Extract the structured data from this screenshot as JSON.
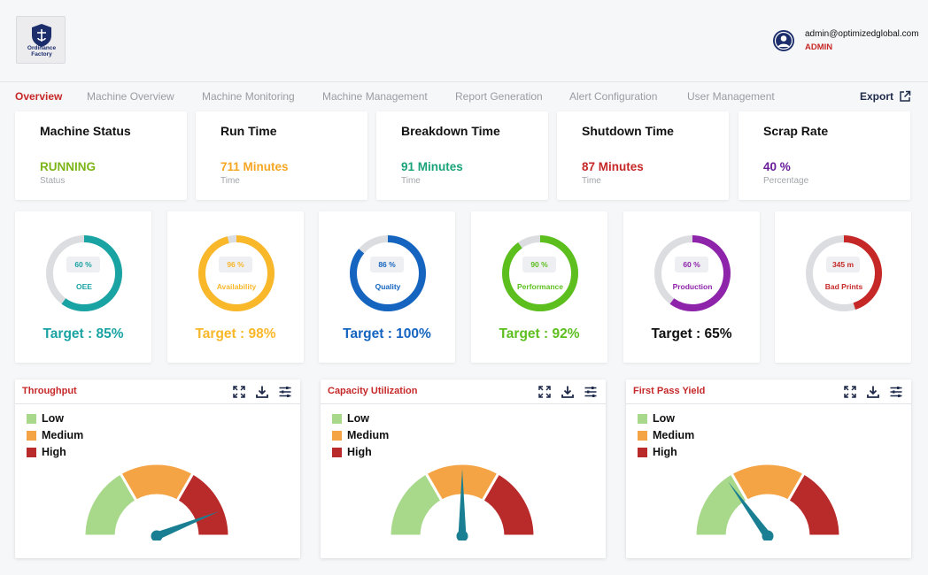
{
  "header": {
    "logo_text": "Ordinance Factory",
    "user_email": "admin@optimizedglobal.com",
    "user_role": "ADMIN"
  },
  "tabs": [
    {
      "label": "Overview",
      "active": true
    },
    {
      "label": "Machine Overview"
    },
    {
      "label": "Machine Monitoring"
    },
    {
      "label": "Machine Management"
    },
    {
      "label": "Report Generation"
    },
    {
      "label": "Alert Configuration"
    },
    {
      "label": "User Management"
    }
  ],
  "export_label": "Export",
  "stats": [
    {
      "title": "Machine Status",
      "value": "RUNNING",
      "sub": "Status",
      "color": "#7cb518"
    },
    {
      "title": "Run Time",
      "value": "711 Minutes",
      "sub": "Time",
      "color": "#f5a623"
    },
    {
      "title": "Breakdown Time",
      "value": "91 Minutes",
      "sub": "Time",
      "color": "#1aa37a"
    },
    {
      "title": "Shutdown Time",
      "value": "87 Minutes",
      "sub": "Time",
      "color": "#c62828"
    },
    {
      "title": "Scrap Rate",
      "value": "40 %",
      "sub": "Percentage",
      "color": "#6a1b9a"
    }
  ],
  "kpis": [
    {
      "value": "60 %",
      "label": "OEE",
      "target": "Target : 85%",
      "color": "#1aa3a3",
      "fill": 0.6
    },
    {
      "value": "96 %",
      "label": "Availability",
      "target": "Target : 98%",
      "color": "#f9b72a",
      "fill": 0.96
    },
    {
      "value": "86 %",
      "label": "Quality",
      "target": "Target : 100%",
      "color": "#1565c0",
      "fill": 0.86
    },
    {
      "value": "90 %",
      "label": "Performance",
      "target": "Target : 92%",
      "color": "#5cbf1e",
      "fill": 0.9
    },
    {
      "value": "60 %",
      "label": "Production",
      "target": "Target : 65%",
      "color": "#8e24aa",
      "target_color": "#111111",
      "fill": 0.6
    },
    {
      "value": "345 m",
      "label": "Bad Prints",
      "target": "",
      "color": "#c62828",
      "fill": 0.45
    }
  ],
  "legend": {
    "low": "Low",
    "medium": "Medium",
    "high": "High"
  },
  "colors": {
    "low": "#a8d98a",
    "medium": "#f5a445",
    "high": "#b92b2b",
    "needle": "#1a7f93"
  },
  "gauges": [
    {
      "title": "Throughput",
      "level": 0.88
    },
    {
      "title": "Capacity Utilization",
      "level": 0.5
    },
    {
      "title": "First Pass Yield",
      "level": 0.3
    }
  ]
}
